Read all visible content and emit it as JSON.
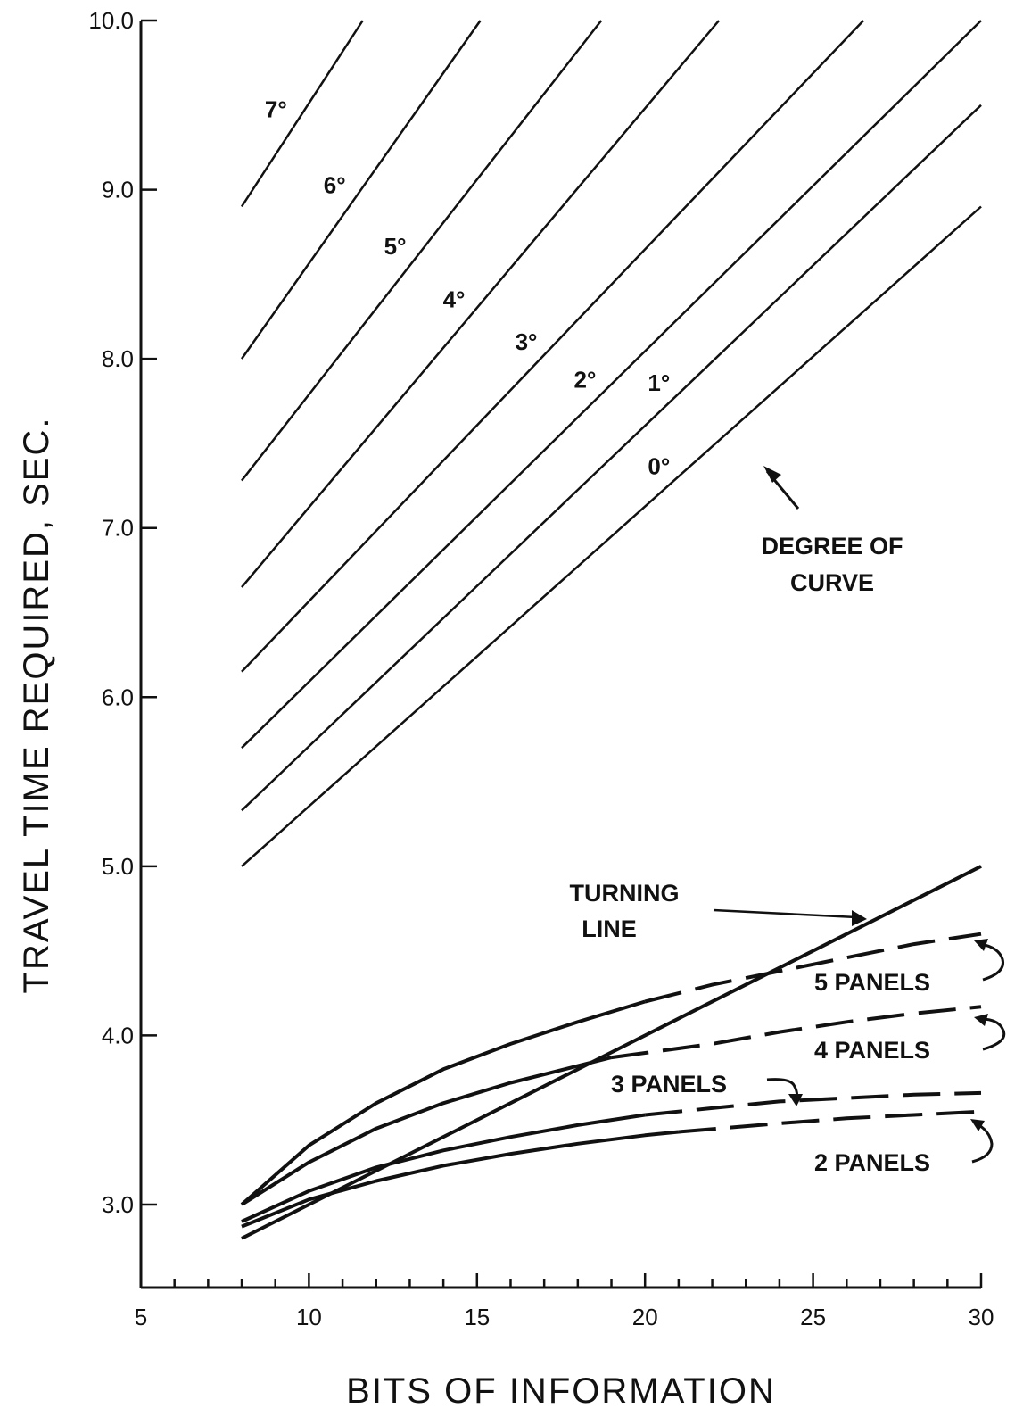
{
  "chart_data": {
    "type": "line",
    "xlabel": "BITS OF INFORMATION",
    "ylabel": "TRAVEL TIME REQUIRED, SEC.",
    "xlim": [
      5,
      30
    ],
    "ylim": [
      2.5,
      10.0
    ],
    "x_ticks": [
      5,
      10,
      15,
      20,
      25,
      30
    ],
    "x_tick_labels": [
      "5",
      "10",
      "15",
      "20",
      "25",
      "30"
    ],
    "y_ticks": [
      3.0,
      4.0,
      5.0,
      6.0,
      7.0,
      8.0,
      9.0,
      10.0
    ],
    "y_tick_labels": [
      "3.0",
      "4.0",
      "5.0",
      "6.0",
      "7.0",
      "8.0",
      "9.0",
      "10.0"
    ],
    "grid": false,
    "line_color": "#111111",
    "degree_series": [
      {
        "name": "0°",
        "x": [
          8,
          30
        ],
        "y": [
          5.0,
          8.9
        ]
      },
      {
        "name": "1°",
        "x": [
          8,
          30
        ],
        "y": [
          5.33,
          9.5
        ]
      },
      {
        "name": "2°",
        "x": [
          8,
          30
        ],
        "y": [
          5.7,
          10.0
        ]
      },
      {
        "name": "3°",
        "x": [
          8,
          26.5
        ],
        "y": [
          6.15,
          10.0
        ]
      },
      {
        "name": "4°",
        "x": [
          8,
          22.2
        ],
        "y": [
          6.65,
          10.0
        ]
      },
      {
        "name": "5°",
        "x": [
          8,
          18.7
        ],
        "y": [
          7.28,
          10.0
        ]
      },
      {
        "name": "6°",
        "x": [
          8,
          15.1
        ],
        "y": [
          8.0,
          10.0
        ]
      },
      {
        "name": "7°",
        "x": [
          8,
          11.6
        ],
        "y": [
          8.9,
          10.0
        ]
      }
    ],
    "turning_line": {
      "name": "TURNING LINE",
      "x": [
        8,
        30
      ],
      "y": [
        2.8,
        5.0
      ]
    },
    "panel_series": [
      {
        "name": "5 PANELS",
        "solid": {
          "x": [
            8,
            10,
            12,
            14,
            16,
            18,
            20
          ],
          "y": [
            3.0,
            3.35,
            3.6,
            3.8,
            3.95,
            4.08,
            4.2
          ]
        },
        "dashed": {
          "x": [
            20,
            22,
            24,
            26,
            28,
            30
          ],
          "y": [
            4.2,
            4.3,
            4.38,
            4.46,
            4.54,
            4.6
          ]
        }
      },
      {
        "name": "4 PANELS",
        "solid": {
          "x": [
            8,
            10,
            12,
            14,
            16,
            18,
            19
          ],
          "y": [
            3.0,
            3.25,
            3.45,
            3.6,
            3.72,
            3.82,
            3.87
          ]
        },
        "dashed": {
          "x": [
            19,
            22,
            24,
            26,
            28,
            30
          ],
          "y": [
            3.87,
            3.95,
            4.02,
            4.08,
            4.13,
            4.17
          ]
        }
      },
      {
        "name": "3 PANELS",
        "solid": {
          "x": [
            8,
            10,
            12,
            14,
            16,
            18,
            20
          ],
          "y": [
            2.9,
            3.08,
            3.22,
            3.32,
            3.4,
            3.47,
            3.53
          ]
        },
        "dashed": {
          "x": [
            20,
            22,
            24,
            26,
            28,
            30
          ],
          "y": [
            3.53,
            3.57,
            3.61,
            3.63,
            3.65,
            3.66
          ]
        }
      },
      {
        "name": "2 PANELS",
        "solid": {
          "x": [
            8,
            10,
            12,
            14,
            16,
            18,
            20,
            21
          ],
          "y": [
            2.87,
            3.03,
            3.14,
            3.23,
            3.3,
            3.36,
            3.41,
            3.43
          ]
        },
        "dashed": {
          "x": [
            21,
            24,
            26,
            28,
            30
          ],
          "y": [
            3.43,
            3.48,
            3.51,
            3.53,
            3.55
          ]
        }
      }
    ],
    "annotations": {
      "degree_of_curve_line1": "DEGREE OF",
      "degree_of_curve_line2": "CURVE",
      "turning_line_line1": "TURNING",
      "turning_line_line2": "LINE",
      "five_panels": "5 PANELS",
      "four_panels": "4 PANELS",
      "three_panels": "3 PANELS",
      "two_panels": "2 PANELS"
    }
  }
}
